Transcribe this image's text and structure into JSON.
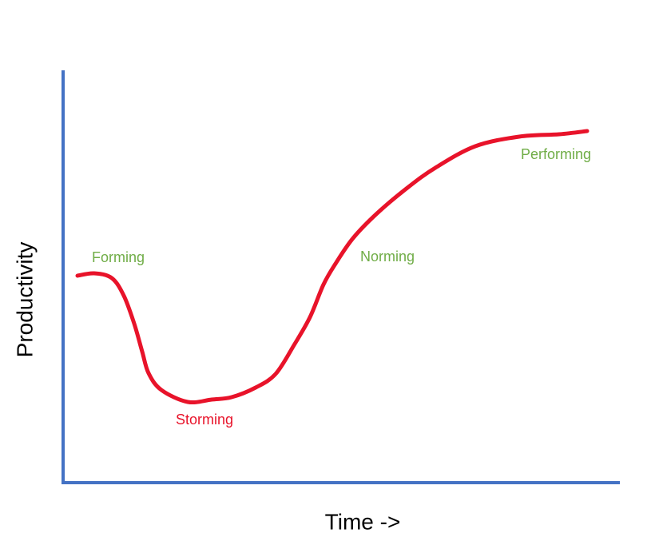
{
  "axes": {
    "y_label": "Productivity",
    "x_label": "Time ->"
  },
  "stages": [
    {
      "label": "Forming",
      "color": "#70ad47"
    },
    {
      "label": "Storming",
      "color": "#e8132a"
    },
    {
      "label": "Norming",
      "color": "#70ad47"
    },
    {
      "label": "Performing",
      "color": "#70ad47"
    }
  ]
}
